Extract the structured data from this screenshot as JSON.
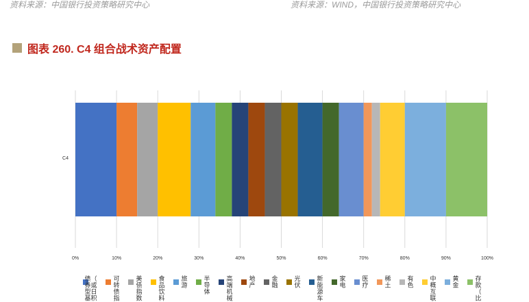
{
  "header": {
    "source_left": "资料来源：中国银行投资策略研究中心",
    "source_right": "资料来源：WIND，中国银行投资策略研究中心"
  },
  "title": "图表 260. C4 组合战术资产配置",
  "chart_data": {
    "type": "bar",
    "orientation": "horizontal-stacked-100",
    "categories": [
      "C4"
    ],
    "xlim": [
      0,
      100
    ],
    "x_ticks": [
      "0%",
      "10%",
      "20%",
      "30%",
      "40%",
      "50%",
      "60%",
      "70%",
      "80%",
      "90%",
      "100%"
    ],
    "grid": true,
    "legend_position": "bottom",
    "series": [
      {
        "name": "债券型基金（或日积）",
        "label": "（或日积债券型基",
        "color": "#4472c4",
        "values": [
          10
        ]
      },
      {
        "name": "可转债指",
        "label": "可转债指",
        "color": "#ed7d31",
        "values": [
          5
        ]
      },
      {
        "name": "美债指数",
        "label": "美债指数",
        "color": "#a5a5a5",
        "values": [
          5
        ]
      },
      {
        "name": "食品饮料",
        "label": "食品饮料",
        "color": "#ffc000",
        "values": [
          8
        ]
      },
      {
        "name": "旅游",
        "label": "旅游",
        "color": "#5b9bd5",
        "values": [
          6
        ]
      },
      {
        "name": "半导体",
        "label": "半导体",
        "color": "#70ad47",
        "values": [
          4
        ]
      },
      {
        "name": "高端机械",
        "label": "高端机械",
        "color": "#264478",
        "values": [
          4
        ]
      },
      {
        "name": "地产",
        "label": "地产",
        "color": "#9e480e",
        "values": [
          4
        ]
      },
      {
        "name": "金融",
        "label": "金融",
        "color": "#636363",
        "values": [
          4
        ]
      },
      {
        "name": "光伏",
        "label": "光伏",
        "color": "#997300",
        "values": [
          4
        ]
      },
      {
        "name": "新能源车",
        "label": "新能源车",
        "color": "#255e91",
        "values": [
          6
        ]
      },
      {
        "name": "家电",
        "label": "家电",
        "color": "#43682b",
        "values": [
          4
        ]
      },
      {
        "name": "医疗",
        "label": "医疗",
        "color": "#698ed0",
        "values": [
          6
        ]
      },
      {
        "name": "稀土",
        "label": "稀土",
        "color": "#f1975a",
        "values": [
          2
        ]
      },
      {
        "name": "有色",
        "label": "有色",
        "color": "#b7b7b7",
        "values": [
          2
        ]
      },
      {
        "name": "中概互联",
        "label": "中概互联",
        "color": "#ffcd33",
        "values": [
          6
        ]
      },
      {
        "name": "黄金",
        "label": "黄金",
        "color": "#7cafdd",
        "values": [
          10
        ]
      },
      {
        "name": "存款（比",
        "label": "存款（比",
        "color": "#8cc168",
        "values": [
          10
        ]
      }
    ]
  }
}
